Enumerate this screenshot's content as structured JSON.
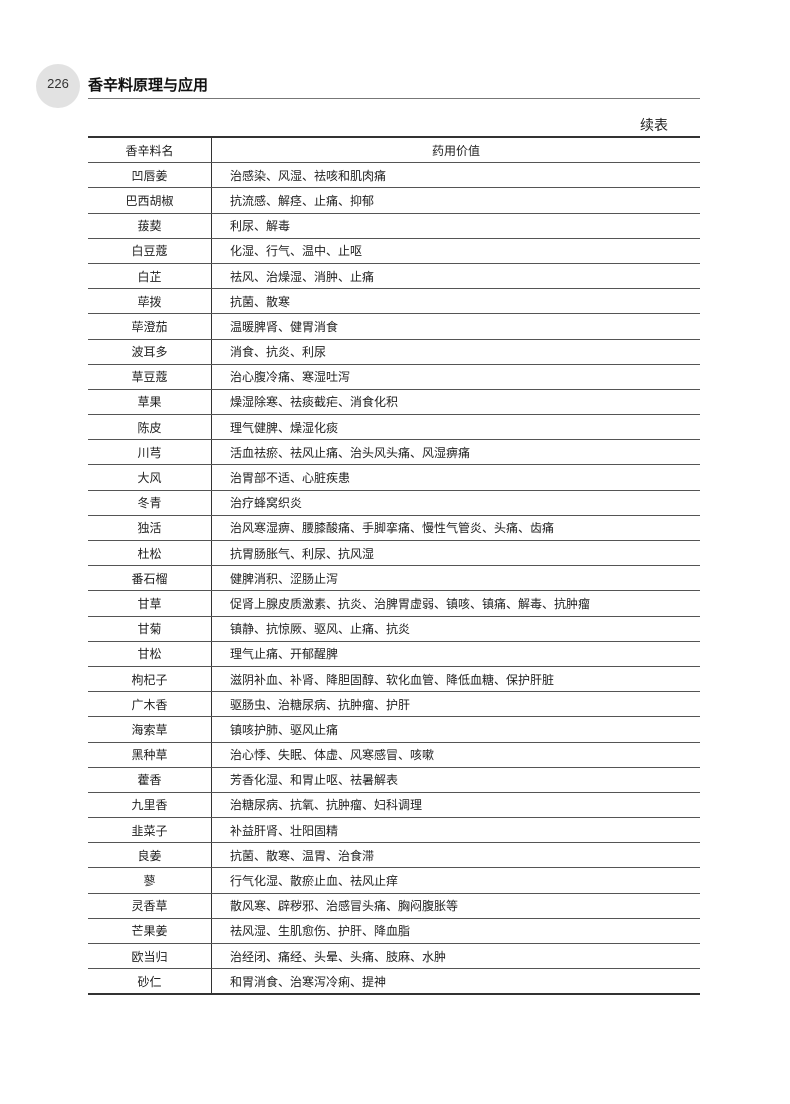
{
  "header": {
    "page_number": "226",
    "book_title": "香辛料原理与应用"
  },
  "table": {
    "continued_label": "续表",
    "columns": [
      "香辛料名",
      "药用价值"
    ],
    "rows": [
      [
        "凹唇姜",
        "治感染、风湿、祛咳和肌肉痛"
      ],
      [
        "巴西胡椒",
        "抗流感、解痉、止痛、抑郁"
      ],
      [
        "菝葜",
        "利尿、解毒"
      ],
      [
        "白豆蔻",
        "化湿、行气、温中、止呕"
      ],
      [
        "白芷",
        "祛风、治燥湿、消肿、止痛"
      ],
      [
        "荜拨",
        "抗菌、散寒"
      ],
      [
        "荜澄茄",
        "温暖脾肾、健胃消食"
      ],
      [
        "波耳多",
        "消食、抗炎、利尿"
      ],
      [
        "草豆蔻",
        "治心腹冷痛、寒湿吐泻"
      ],
      [
        "草果",
        "燥湿除寒、祛痰截疟、消食化积"
      ],
      [
        "陈皮",
        "理气健脾、燥湿化痰"
      ],
      [
        "川芎",
        "活血祛瘀、祛风止痛、治头风头痛、风湿痹痛"
      ],
      [
        "大风",
        "治胃部不适、心脏疾患"
      ],
      [
        "冬青",
        "治疗蜂窝织炎"
      ],
      [
        "独活",
        "治风寒湿痹、腰膝酸痛、手脚挛痛、慢性气管炎、头痛、齿痛"
      ],
      [
        "杜松",
        "抗胃肠胀气、利尿、抗风湿"
      ],
      [
        "番石榴",
        "健脾消积、涩肠止泻"
      ],
      [
        "甘草",
        "促肾上腺皮质激素、抗炎、治脾胃虚弱、镇咳、镇痛、解毒、抗肿瘤"
      ],
      [
        "甘菊",
        "镇静、抗惊厥、驱风、止痛、抗炎"
      ],
      [
        "甘松",
        "理气止痛、开郁醒脾"
      ],
      [
        "枸杞子",
        "滋阴补血、补肾、降胆固醇、软化血管、降低血糖、保护肝脏"
      ],
      [
        "广木香",
        "驱肠虫、治糖尿病、抗肿瘤、护肝"
      ],
      [
        "海索草",
        "镇咳护肺、驱风止痛"
      ],
      [
        "黑种草",
        "治心悸、失眠、体虚、风寒感冒、咳嗽"
      ],
      [
        "藿香",
        "芳香化湿、和胃止呕、祛暑解表"
      ],
      [
        "九里香",
        "治糖尿病、抗氧、抗肿瘤、妇科调理"
      ],
      [
        "韭菜子",
        "补益肝肾、壮阳固精"
      ],
      [
        "良姜",
        "抗菌、散寒、温胃、治食滞"
      ],
      [
        "蓼",
        "行气化湿、散瘀止血、祛风止痒"
      ],
      [
        "灵香草",
        "散风寒、辟秽邪、治感冒头痛、胸闷腹胀等"
      ],
      [
        "芒果姜",
        "祛风湿、生肌愈伤、护肝、降血脂"
      ],
      [
        "欧当归",
        "治经闭、痛经、头晕、头痛、肢麻、水肿"
      ],
      [
        "砂仁",
        "和胃消食、治寒泻冷痢、提神"
      ]
    ]
  }
}
